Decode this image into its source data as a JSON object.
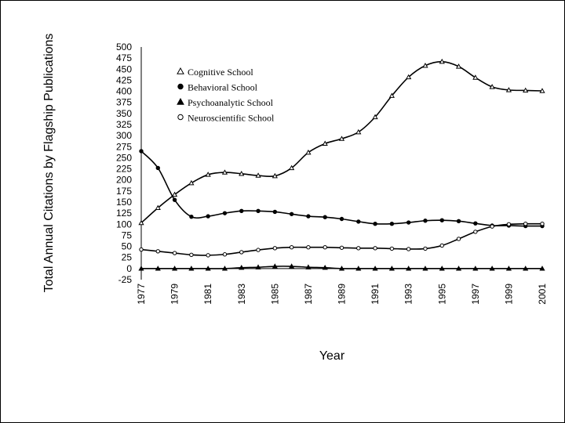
{
  "chart_data": {
    "type": "line",
    "title": "",
    "xlabel": "Year",
    "ylabel": "Total Annual Citations by Flagship Publications",
    "ylim": [
      -25,
      500
    ],
    "xlim": [
      1977,
      2001
    ],
    "yticks": [
      -25,
      0,
      25,
      50,
      75,
      100,
      125,
      150,
      175,
      200,
      225,
      250,
      275,
      300,
      325,
      350,
      375,
      400,
      425,
      450,
      475,
      500
    ],
    "xticks": [
      1977,
      1979,
      1981,
      1983,
      1985,
      1987,
      1989,
      1991,
      1993,
      1995,
      1997,
      1999,
      2001
    ],
    "x": [
      1977,
      1978,
      1979,
      1980,
      1981,
      1982,
      1983,
      1984,
      1985,
      1986,
      1987,
      1988,
      1989,
      1990,
      1991,
      1992,
      1993,
      1994,
      1995,
      1996,
      1997,
      1998,
      1999,
      2000,
      2001
    ],
    "legend_position": "top-left",
    "series": [
      {
        "name": "Cognitive School",
        "marker": "triangle-open",
        "values": [
          103,
          137,
          167,
          193,
          212,
          217,
          214,
          210,
          209,
          227,
          262,
          282,
          293,
          308,
          342,
          390,
          432,
          458,
          467,
          456,
          431,
          410,
          403,
          402,
          401
        ]
      },
      {
        "name": "Behavioral School",
        "marker": "circle-filled",
        "values": [
          265,
          227,
          155,
          117,
          118,
          125,
          130,
          130,
          128,
          123,
          118,
          116,
          112,
          106,
          101,
          101,
          104,
          108,
          109,
          107,
          102,
          97,
          97,
          96,
          96
        ]
      },
      {
        "name": "Psychoanalytic School",
        "marker": "triangle-filled",
        "values": [
          0,
          0,
          0,
          0,
          0,
          0,
          2,
          3,
          5,
          5,
          3,
          2,
          0,
          0,
          0,
          0,
          0,
          0,
          0,
          0,
          0,
          0,
          0,
          0,
          0
        ]
      },
      {
        "name": "Neuroscientific School",
        "marker": "circle-open",
        "values": [
          43,
          39,
          35,
          31,
          30,
          32,
          37,
          42,
          46,
          48,
          48,
          48,
          47,
          46,
          46,
          45,
          44,
          45,
          52,
          67,
          83,
          95,
          100,
          101,
          101
        ]
      }
    ]
  }
}
